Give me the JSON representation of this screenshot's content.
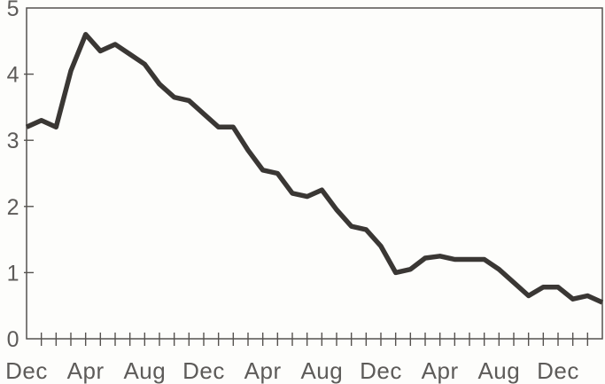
{
  "chart_data": {
    "type": "line",
    "title": "",
    "xlabel": "",
    "ylabel": "",
    "grid": false,
    "legend": "none",
    "framed": true,
    "ylim": [
      0,
      5
    ],
    "yticks": [
      0,
      1,
      2,
      3,
      4,
      5
    ],
    "y_tick_labels": [
      "0",
      "1",
      "2",
      "3",
      "4",
      "5"
    ],
    "x_label_sequence": [
      "Dec",
      "Apr",
      "Aug",
      "Dec",
      "Apr",
      "Aug",
      "Dec",
      "Apr",
      "Aug",
      "Dec"
    ],
    "x_label_interval": 4,
    "x_tick_labels": [
      "Dec",
      "",
      "",
      "",
      "Apr",
      "",
      "",
      "",
      "Aug",
      "",
      "",
      "",
      "Dec",
      "",
      "",
      "",
      "Apr",
      "",
      "",
      "",
      "Aug",
      "",
      "",
      "",
      "Dec",
      "",
      "",
      "",
      "Apr",
      "",
      "",
      "",
      "Aug",
      "",
      "",
      "",
      "Dec",
      "",
      "",
      ""
    ],
    "values": [
      3.2,
      3.3,
      3.2,
      4.05,
      4.6,
      4.35,
      4.45,
      4.3,
      4.15,
      3.85,
      3.65,
      3.6,
      3.4,
      3.2,
      3.2,
      2.85,
      2.55,
      2.5,
      2.2,
      2.15,
      2.25,
      1.95,
      1.7,
      1.65,
      1.4,
      1.0,
      1.05,
      1.22,
      1.25,
      1.2,
      1.2,
      1.2,
      1.05,
      0.85,
      0.65,
      0.78,
      0.78,
      0.6,
      0.65,
      0.55
    ],
    "line_color": "#3a3734",
    "line_width": 5.5,
    "axis_color": "#55524f",
    "label_color": "#5d5b59",
    "background": "#fdfdfb"
  }
}
